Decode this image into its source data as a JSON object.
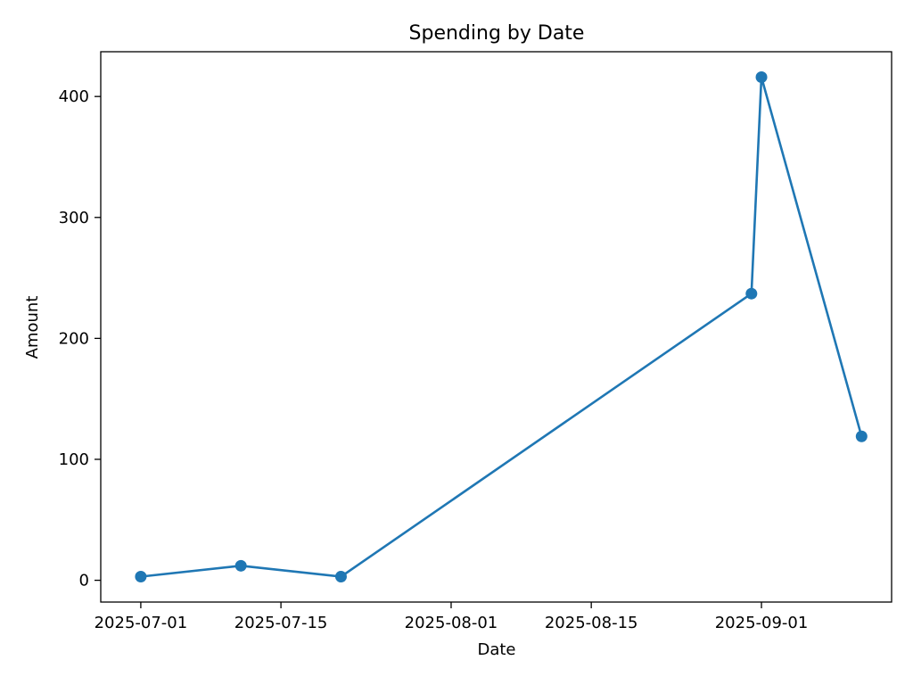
{
  "chart_data": {
    "type": "line",
    "title": "Spending by Date",
    "xlabel": "Date",
    "ylabel": "Amount",
    "x_ticks": [
      "2025-07-01",
      "2025-07-15",
      "2025-08-01",
      "2025-08-15",
      "2025-09-01"
    ],
    "y_ticks": [
      0,
      100,
      200,
      300,
      400
    ],
    "xlim": [
      "2025-06-27",
      "2025-09-14"
    ],
    "ylim": [
      -18,
      437
    ],
    "grid": false,
    "legend": "none",
    "series": [
      {
        "color": "#1f77b4",
        "marker": "circle",
        "points": [
          {
            "x": "2025-07-01",
            "y": 3
          },
          {
            "x": "2025-07-11",
            "y": 12
          },
          {
            "x": "2025-07-21",
            "y": 3
          },
          {
            "x": "2025-08-31",
            "y": 237
          },
          {
            "x": "2025-09-01",
            "y": 416
          },
          {
            "x": "2025-09-11",
            "y": 119
          }
        ]
      }
    ]
  }
}
